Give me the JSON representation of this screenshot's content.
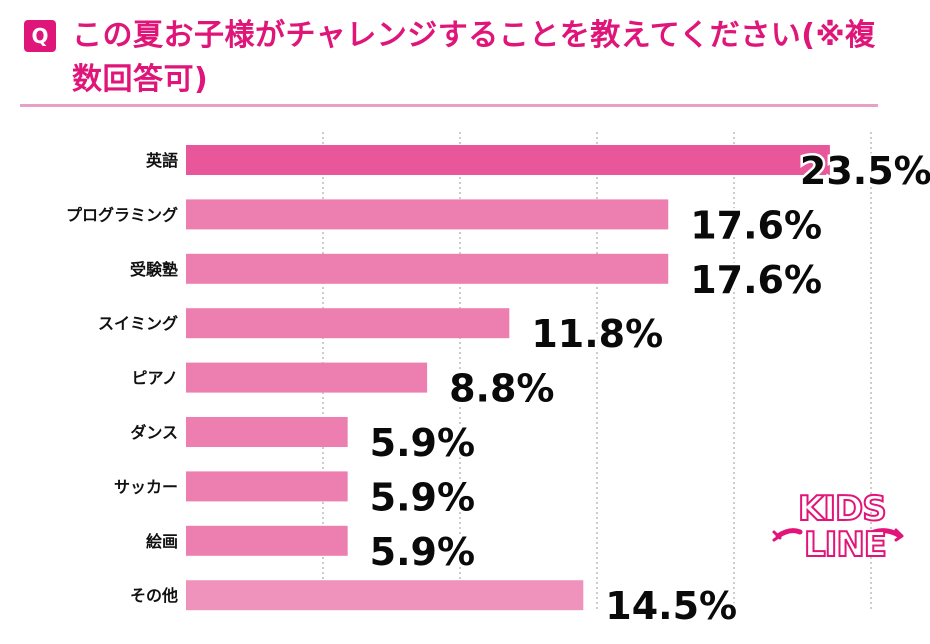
{
  "header": {
    "badge": "Q",
    "title": "この夏お子様がチャレンジすることを教えてください(※複数回答可)"
  },
  "logo": {
    "line1": "KIDS",
    "line2": "LINE"
  },
  "colors": {
    "accent": "#e0157a",
    "bar_top": "#e8579a",
    "bar": "#ec7fb0",
    "bar_light": "#ef93bd"
  },
  "chart_data": {
    "type": "bar",
    "orientation": "horizontal",
    "categories": [
      "英語",
      "プログラミング",
      "受験塾",
      "スイミング",
      "ピアノ",
      "ダンス",
      "サッカー",
      "絵画",
      "その他"
    ],
    "values": [
      23.5,
      17.6,
      17.6,
      11.8,
      8.8,
      5.9,
      5.9,
      5.9,
      14.5
    ],
    "labels": [
      "23.5%",
      "17.6%",
      "17.6%",
      "11.8%",
      "8.8%",
      "5.9%",
      "5.9%",
      "5.9%",
      "14.5%"
    ],
    "unit": "%",
    "xlim": [
      0,
      25
    ],
    "grid": true
  }
}
